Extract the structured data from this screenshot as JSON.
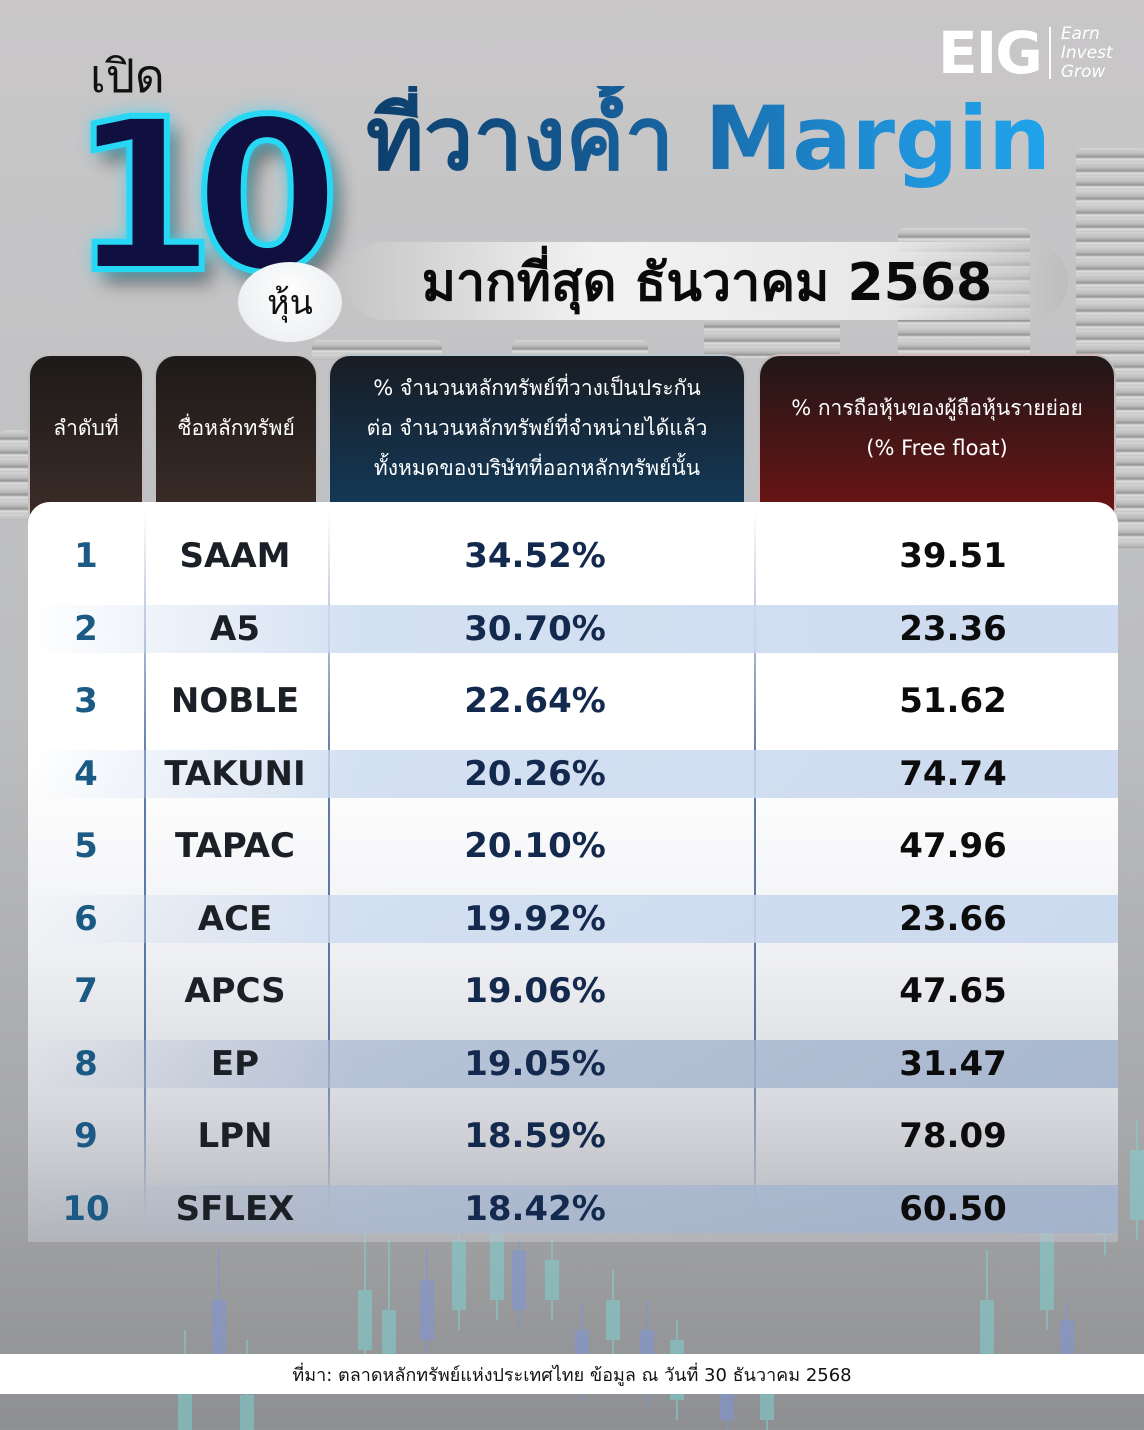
{
  "header": {
    "kicker": "เปิด",
    "big_number": "10",
    "unit": "หุ้น",
    "title": "ที่วางค้ำ Margin",
    "subtitle": "มากที่สุด ธันวาคม 2568"
  },
  "logo": {
    "mark": "EIG",
    "lines": [
      "Earn",
      "Invest",
      "Grow"
    ]
  },
  "table": {
    "columns": [
      {
        "label": "ลำดับที่",
        "color": "#2f2522"
      },
      {
        "label": "ชื่อหลักทรัพย์",
        "color": "#2f2522"
      },
      {
        "label": "% จำนวนหลักทรัพย์ที่วางเป็นประกัน\nต่อ จำนวนหลักทรัพย์ที่จำหน่ายได้แล้ว\nทั้งหมดของบริษัทที่ออกหลักทรัพย์นั้น",
        "color": "#133a5a"
      },
      {
        "label": "% การถือหุ้นของผู้ถือหุ้นรายย่อย\n(% Free float)",
        "color": "#6c1414"
      }
    ],
    "rows": [
      {
        "rank": "1",
        "symbol": "SAAM",
        "margin_pct": "34.52%",
        "free_float": "39.51"
      },
      {
        "rank": "2",
        "symbol": "A5",
        "margin_pct": "30.70%",
        "free_float": "23.36"
      },
      {
        "rank": "3",
        "symbol": "NOBLE",
        "margin_pct": "22.64%",
        "free_float": "51.62"
      },
      {
        "rank": "4",
        "symbol": "TAKUNI",
        "margin_pct": "20.26%",
        "free_float": "74.74"
      },
      {
        "rank": "5",
        "symbol": "TAPAC",
        "margin_pct": "20.10%",
        "free_float": "47.96"
      },
      {
        "rank": "6",
        "symbol": "ACE",
        "margin_pct": "19.92%",
        "free_float": "23.66"
      },
      {
        "rank": "7",
        "symbol": "APCS",
        "margin_pct": "19.06%",
        "free_float": "47.65"
      },
      {
        "rank": "8",
        "symbol": "EP",
        "margin_pct": "19.05%",
        "free_float": "31.47"
      },
      {
        "rank": "9",
        "symbol": "LPN",
        "margin_pct": "18.59%",
        "free_float": "78.09"
      },
      {
        "rank": "10",
        "symbol": "SFLEX",
        "margin_pct": "18.42%",
        "free_float": "60.50"
      }
    ]
  },
  "footer": {
    "source": "ที่มา: ตลาดหลักทรัพย์แห่งประเทศไทย ข้อมูล ณ วันที่ 30 ธันวาคม 2568"
  },
  "colors": {
    "title_gradient_start": "#0c3e6b",
    "title_gradient_end": "#1fa4ec",
    "neon_outline": "#27d8f5",
    "rank_text": "#1c5a86",
    "pct_text": "#13294d"
  }
}
